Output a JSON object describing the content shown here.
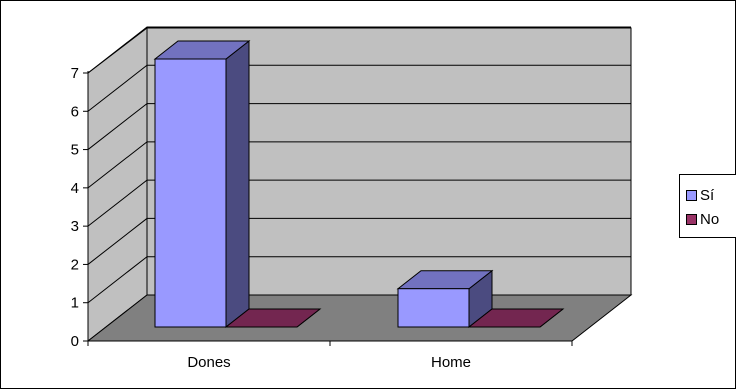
{
  "chart_data": {
    "type": "bar",
    "categories": [
      "Dones",
      "Home"
    ],
    "series": [
      {
        "name": "Sí",
        "values": [
          7,
          1
        ],
        "color": "#9999FF",
        "side_color": "#4B4B80",
        "top_color": "#7272C0"
      },
      {
        "name": "No",
        "values": [
          0,
          0
        ],
        "color": "#993366",
        "side_color": "#4C1933",
        "top_color": "#732650"
      }
    ],
    "ylim": [
      0,
      7
    ],
    "yticks": [
      "0",
      "1",
      "2",
      "3",
      "4",
      "5",
      "6",
      "7"
    ],
    "title": "",
    "xlabel": "",
    "ylabel": "",
    "grid": true,
    "legend_position": "right",
    "colors": {
      "back_wall": "#C0C0C0",
      "floor": "#808080",
      "side_wall": "#C0C0C0",
      "gridline": "#000000"
    }
  }
}
